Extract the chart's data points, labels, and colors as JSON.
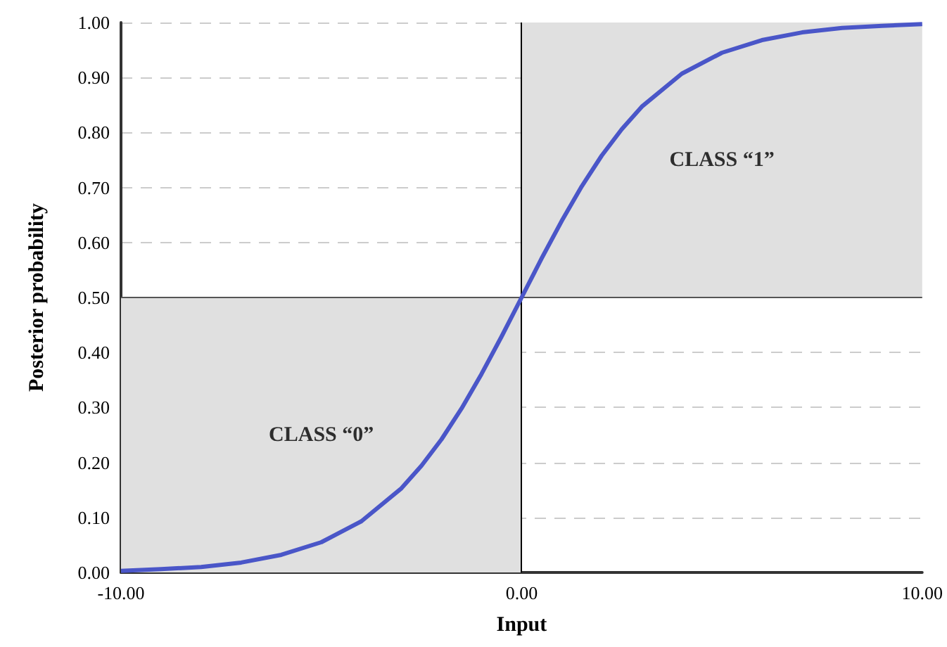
{
  "chart_data": {
    "type": "line",
    "xlabel": "Input",
    "ylabel": "Posterior probability",
    "x": [
      -10,
      -9,
      -8,
      -7,
      -6,
      -5,
      -4,
      -3,
      -2.5,
      -2,
      -1.5,
      -1,
      -0.5,
      0,
      0.5,
      1,
      1.5,
      2,
      2.5,
      3,
      4,
      5,
      6,
      7,
      8,
      9,
      10
    ],
    "series": [
      {
        "color": "#4a56c8",
        "values": [
          0.003,
          0.006,
          0.01,
          0.018,
          0.032,
          0.055,
          0.093,
          0.153,
          0.194,
          0.242,
          0.298,
          0.361,
          0.429,
          0.5,
          0.571,
          0.639,
          0.702,
          0.758,
          0.806,
          0.847,
          0.907,
          0.945,
          0.968,
          0.982,
          0.99,
          0.994,
          0.997
        ]
      }
    ],
    "xlim": [
      -10,
      10
    ],
    "xticks": [
      {
        "value": -10,
        "label": "-10.00"
      },
      {
        "value": 0,
        "label": "0.00"
      },
      {
        "value": 10,
        "label": "10.00"
      }
    ],
    "ylim": [
      0,
      1
    ],
    "yticks": [
      {
        "value": 0,
        "label": "0.00"
      },
      {
        "value": 0.1,
        "label": "0.10"
      },
      {
        "value": 0.2,
        "label": "0.20"
      },
      {
        "value": 0.3,
        "label": "0.30"
      },
      {
        "value": 0.4,
        "label": "0.40"
      },
      {
        "value": 0.5,
        "label": "0.50"
      },
      {
        "value": 0.6,
        "label": "0.60"
      },
      {
        "value": 0.7,
        "label": "0.70"
      },
      {
        "value": 0.8,
        "label": "0.80"
      },
      {
        "value": 0.9,
        "label": "0.90"
      },
      {
        "value": 1,
        "label": "1.00"
      }
    ],
    "ref_lines": [
      {
        "axis": "x",
        "value": 0,
        "color": "#000000"
      },
      {
        "axis": "y",
        "value": 0.5,
        "color": "#555555"
      }
    ],
    "bands": [
      {
        "axis": "y",
        "from": 0,
        "to": 0.5,
        "color": "#e0e0e0"
      },
      {
        "axis": "y",
        "from": 0.5,
        "to": 1,
        "color": "#e0e0e0"
      }
    ],
    "annotations": [
      "CLASS “0”",
      "CLASS “1”"
    ],
    "grid": "y",
    "marker": "none",
    "line_style": "solid"
  }
}
